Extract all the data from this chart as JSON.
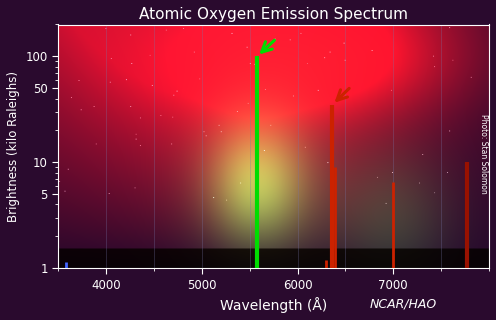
{
  "title": "Atomic Oxygen Emission Spectrum",
  "xlabel": "Wavelength (Å)",
  "ylabel": "Brightness (kilo Raleighs)",
  "bg_color": "#2a0a2e",
  "xlim": [
    3500,
    8000
  ],
  "ylim": [
    1,
    200
  ],
  "xticks": [
    4000,
    5000,
    6000,
    7000
  ],
  "title_color": "white",
  "axis_color": "white",
  "tick_color": "white",
  "credit_text": "NCAR/HAO",
  "photo_credit": "Photo: Stan Solomon",
  "spectral_lines": [
    {
      "wavelength": 3577,
      "brightness": 1.15,
      "color": "#4466ff",
      "linewidth": 2.0
    },
    {
      "wavelength": 5577,
      "brightness": 100,
      "color": "#00dd00",
      "linewidth": 3.0
    },
    {
      "wavelength": 6300,
      "brightness": 1.2,
      "color": "#cc2200",
      "linewidth": 2.0
    },
    {
      "wavelength": 6364,
      "brightness": 35,
      "color": "#cc2200",
      "linewidth": 3.0
    },
    {
      "wavelength": 6392,
      "brightness": 9,
      "color": "#cc2200",
      "linewidth": 2.0
    },
    {
      "wavelength": 7000,
      "brightness": 6.5,
      "color": "#cc2200",
      "linewidth": 2.0
    },
    {
      "wavelength": 7774,
      "brightness": 10,
      "color": "#991100",
      "linewidth": 3.0
    }
  ],
  "grid_lines_x": [
    3500,
    4000,
    4500,
    5000,
    5500,
    6000,
    6500,
    7000,
    7500,
    8000
  ],
  "grid_color": "#7777aa",
  "grid_alpha": 0.35,
  "yticks": [
    1,
    5,
    10,
    50,
    100
  ]
}
